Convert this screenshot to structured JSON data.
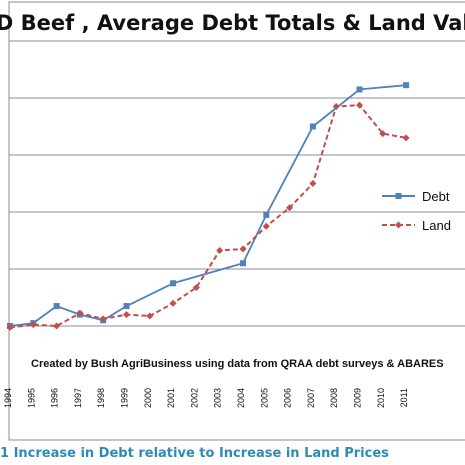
{
  "chart_data": {
    "type": "line",
    "title": "QLD Beef , Average Debt Totals & Land Values",
    "xlabel": "",
    "ylabel": "",
    "x": [
      "1994",
      "1995",
      "1996",
      "1997",
      "1998",
      "1999",
      "2000",
      "2001",
      "2002",
      "2003",
      "2004",
      "2005",
      "2006",
      "2007",
      "2008",
      "2009",
      "2010",
      "2011"
    ],
    "xlim": [
      1994,
      2011
    ],
    "ylim": [
      0,
      125
    ],
    "y_tick_values": [
      0,
      20,
      40,
      60,
      80,
      100,
      120
    ],
    "grid": true,
    "legend": "right",
    "annotation": "Created by Bush AgriBusiness using data from QRAA debt surveys & ABARES",
    "series": [
      {
        "name": "Debt",
        "color": "#4f81bd",
        "style": "solid",
        "marker": "square",
        "points": [
          {
            "x": 1994,
            "y": 20
          },
          {
            "x": 1995,
            "y": 21
          },
          {
            "x": 1996,
            "y": 27
          },
          {
            "x": 1997,
            "y": 24
          },
          {
            "x": 1998,
            "y": 22
          },
          {
            "x": 1999,
            "y": 27
          },
          {
            "x": 2001,
            "y": 35
          },
          {
            "x": 2004,
            "y": 42
          },
          {
            "x": 2005,
            "y": 59
          },
          {
            "x": 2007,
            "y": 90
          },
          {
            "x": 2009,
            "y": 103
          },
          {
            "x": 2011,
            "y": 104.5
          }
        ]
      },
      {
        "name": "Land",
        "color": "#c0504d",
        "style": "dashed",
        "marker": "diamond",
        "points": [
          {
            "x": 1994,
            "y": 19.5
          },
          {
            "x": 1995,
            "y": 20.5
          },
          {
            "x": 1996,
            "y": 20
          },
          {
            "x": 1997,
            "y": 24.5
          },
          {
            "x": 1998,
            "y": 22.5
          },
          {
            "x": 1999,
            "y": 24
          },
          {
            "x": 2000,
            "y": 23.5
          },
          {
            "x": 2001,
            "y": 28
          },
          {
            "x": 2002,
            "y": 33.5
          },
          {
            "x": 2003,
            "y": 46.5
          },
          {
            "x": 2004,
            "y": 47
          },
          {
            "x": 2005,
            "y": 55
          },
          {
            "x": 2006,
            "y": 61.5
          },
          {
            "x": 2007,
            "y": 70
          },
          {
            "x": 2008,
            "y": 97
          },
          {
            "x": 2009,
            "y": 97.5
          },
          {
            "x": 2010,
            "y": 87.5
          },
          {
            "x": 2011,
            "y": 86
          }
        ]
      }
    ]
  },
  "caption": "1 Increase in Debt relative to Increase in Land Prices",
  "colors": {
    "frame": "#8c8c8c",
    "grid": "#8c8c8c",
    "caption": "#2e8bb8"
  }
}
